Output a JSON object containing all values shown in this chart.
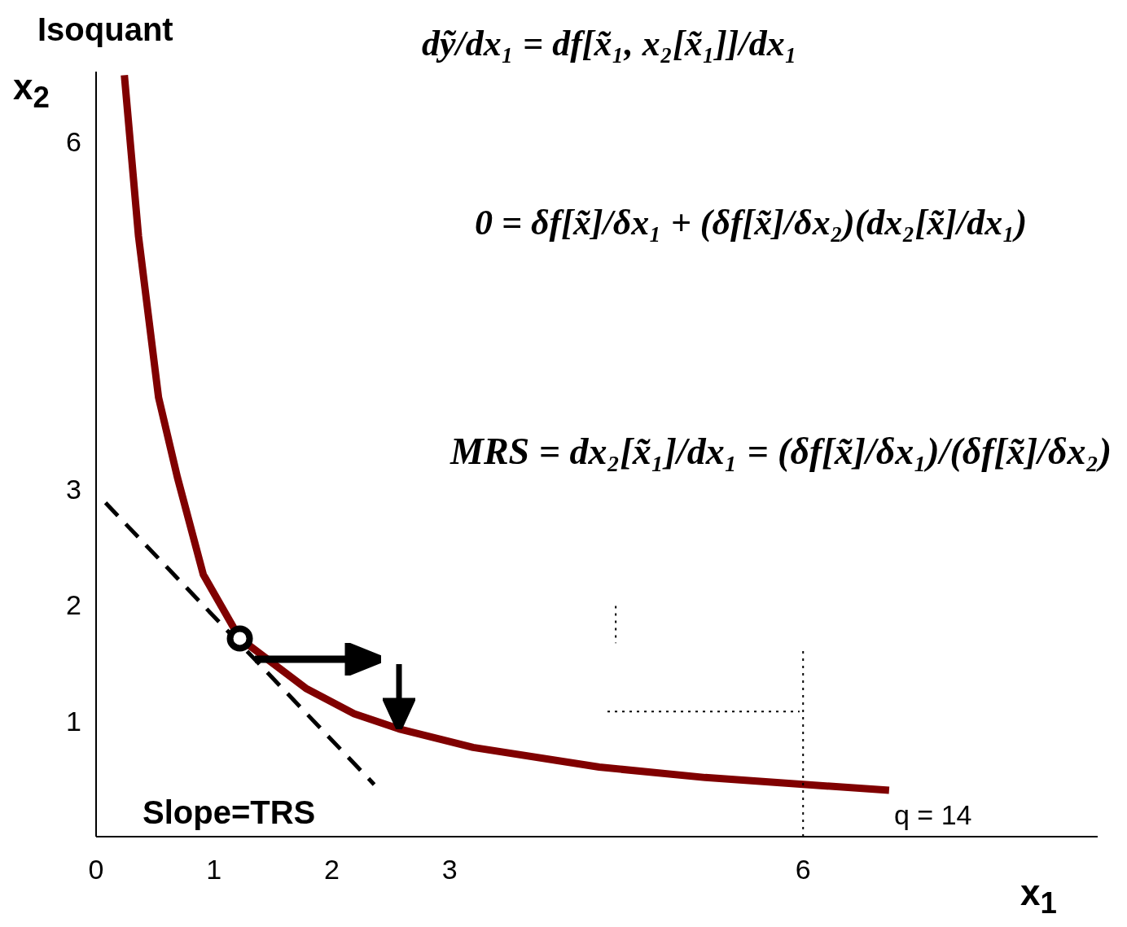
{
  "chart_data": {
    "type": "line",
    "title": "Isoquant",
    "xlabel": "x$_{1}$",
    "ylabel": "x$_{2}$",
    "xlim": [
      0,
      8.5
    ],
    "ylim": [
      0,
      6.6
    ],
    "xticks": [
      0,
      1,
      2,
      3,
      6
    ],
    "yticks": [
      1,
      2,
      3,
      6
    ],
    "grid": false,
    "series": [
      {
        "color": "#800000",
        "line_style": "solid",
        "marker": "none",
        "x": [
          0.24,
          0.36,
          0.53,
          0.69,
          0.91,
          1.22,
          1.78,
          2.19,
          2.57,
          3.2,
          4.27,
          5.17,
          6.73
        ],
        "values": [
          6.57,
          5.18,
          3.79,
          3.1,
          2.26,
          1.71,
          1.28,
          1.06,
          0.93,
          0.77,
          0.6,
          0.51,
          0.4
        ]
      },
      {
        "color": "#000000",
        "line_style": "dashed",
        "marker": "none",
        "x": [
          0.08,
          2.36
        ],
        "values": [
          2.88,
          0.45
        ]
      },
      {
        "color": "#000000",
        "line_style": "dotted",
        "marker": "none",
        "x": [
          6,
          6
        ],
        "values": [
          1.6,
          0
        ]
      },
      {
        "color": "#000000",
        "line_style": "dotted",
        "marker": "none",
        "x": [
          4.34,
          5.97
        ],
        "values": [
          1.08,
          1.08
        ]
      },
      {
        "color": "#000000",
        "line_style": "dotted",
        "marker": "none",
        "x": [
          4.41,
          4.41
        ],
        "values": [
          1.99,
          1.67
        ]
      },
      {
        "type": "scatter",
        "color": "#000000",
        "marker": "circle",
        "x": [
          1.22
        ],
        "values": [
          1.71
        ]
      }
    ],
    "annotations": [
      "Slope=TRS",
      "q = 14",
      "dỹ/dx₁ = df[x̃₁, x₂[x̃₁]]/dx₁",
      "0 = δf[x̃]/δx₁ + (δf[x̃]/δx₂)(dx₂[x̃]/dx₁)",
      "MRS = dx₂[x̃₁]/dx₁ = (δf[x̃]/δx₁)/(δf[x̃]/δx₂)"
    ]
  }
}
